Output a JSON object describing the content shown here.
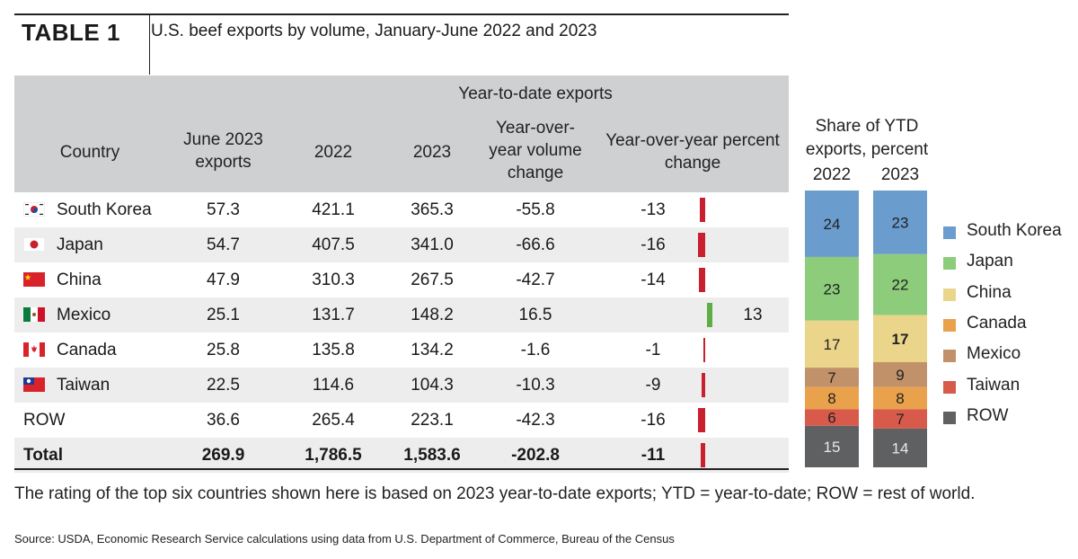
{
  "header": {
    "label": "TABLE 1",
    "title": "U.S. beef exports by volume, January-June 2022 and 2023"
  },
  "table": {
    "group_header": "Year-to-date exports",
    "columns": [
      "Country",
      "June 2023 exports",
      "2022",
      "2023",
      "Year-over-year volume change",
      "Year-over-year percent change"
    ],
    "rows": [
      {
        "country": "South Korea",
        "flag": "south-korea",
        "june": "57.3",
        "y2022": "421.1",
        "y2023": "365.3",
        "vol_change": "-55.8",
        "pct_label": "-13",
        "pct": -13
      },
      {
        "country": "Japan",
        "flag": "japan",
        "june": "54.7",
        "y2022": "407.5",
        "y2023": "341.0",
        "vol_change": "-66.6",
        "pct_label": "-16",
        "pct": -16
      },
      {
        "country": "China",
        "flag": "china",
        "june": "47.9",
        "y2022": "310.3",
        "y2023": "267.5",
        "vol_change": "-42.7",
        "pct_label": "-14",
        "pct": -14
      },
      {
        "country": "Mexico",
        "flag": "mexico",
        "june": "25.1",
        "y2022": "131.7",
        "y2023": "148.2",
        "vol_change": "16.5",
        "pct_label": "13",
        "pct": 13
      },
      {
        "country": "Canada",
        "flag": "canada",
        "june": "25.8",
        "y2022": "135.8",
        "y2023": "134.2",
        "vol_change": "-1.6",
        "pct_label": "-1",
        "pct": -1
      },
      {
        "country": "Taiwan",
        "flag": "taiwan",
        "june": "22.5",
        "y2022": "114.6",
        "y2023": "104.3",
        "vol_change": "-10.3",
        "pct_label": "-9",
        "pct": -9
      },
      {
        "country": "ROW",
        "flag": "",
        "june": "36.6",
        "y2022": "265.4",
        "y2023": "223.1",
        "vol_change": "-42.3",
        "pct_label": "-16",
        "pct": -16
      }
    ],
    "total": {
      "country": "Total",
      "june": "269.9",
      "y2022": "1,786.5",
      "y2023": "1,583.6",
      "vol_change": "-202.8",
      "pct_label": "-11",
      "pct": -11
    },
    "colors": {
      "header_bg": "#cfd0d2",
      "row_alt": "#ededee",
      "neg_bar": "#c8202f",
      "pos_bar": "#5eae45"
    }
  },
  "chart_data": {
    "type": "bar",
    "stacked": true,
    "title": "Share of YTD exports, percent",
    "categories": [
      "2022",
      "2023"
    ],
    "series": [
      {
        "name": "South Korea",
        "values": [
          24,
          23
        ],
        "color": "#6a9ccd"
      },
      {
        "name": "Japan",
        "values": [
          23,
          22
        ],
        "color": "#8ccc7a"
      },
      {
        "name": "China",
        "values": [
          17,
          17
        ],
        "color": "#ead58a"
      },
      {
        "name": "Mexico",
        "values": [
          7,
          9
        ],
        "color": "#c1916a"
      },
      {
        "name": "Canada",
        "values": [
          8,
          8
        ],
        "color": "#e9a14c"
      },
      {
        "name": "Taiwan",
        "values": [
          6,
          7
        ],
        "color": "#d85a4a"
      },
      {
        "name": "ROW",
        "values": [
          15,
          14
        ],
        "color": "#5f6062"
      }
    ],
    "legend_order": [
      "South Korea",
      "Japan",
      "China",
      "Canada",
      "Mexico",
      "Taiwan",
      "ROW"
    ],
    "legend": "right",
    "ylim": [
      0,
      100
    ]
  },
  "footer": {
    "note": "The rating of the top six countries shown here is based on 2023 year-to-date exports; YTD = year-to-date; ROW = rest of world.",
    "source": "Source: USDA, Economic Research Service calculations using data from U.S. Department of Commerce, Bureau of the Census"
  }
}
